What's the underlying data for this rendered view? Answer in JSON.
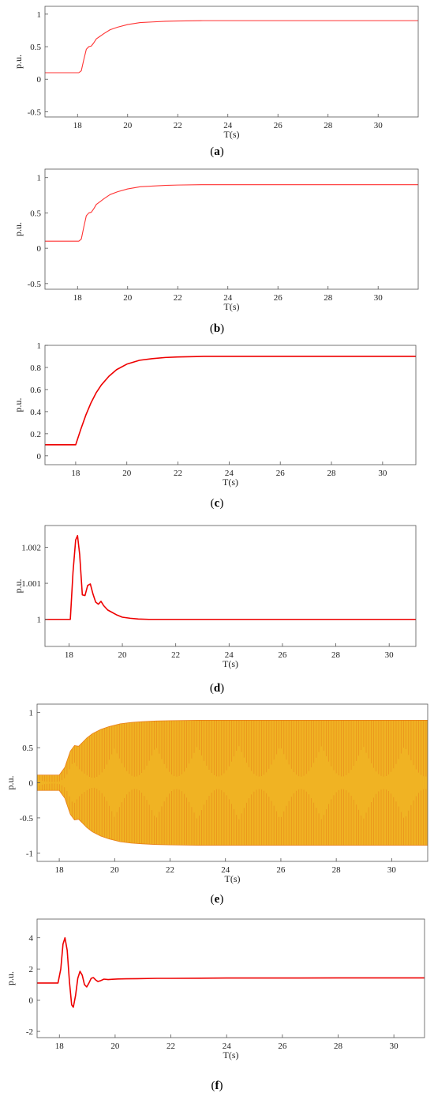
{
  "chart_data": [
    {
      "type": "line",
      "caption": "a",
      "xlabel": "T(s)",
      "ylabel": "p.u.",
      "xlim": [
        16.7,
        31.6
      ],
      "ylim": [
        -0.58,
        1.12
      ],
      "xticks": [
        18,
        20,
        22,
        24,
        26,
        28,
        30
      ],
      "yticks": [
        -0.5,
        0,
        0.5,
        1
      ],
      "ytick_labels": [
        "-0.5",
        "0",
        "0.5",
        "1"
      ],
      "grid": false,
      "series": [
        {
          "color": "#ff3333",
          "x": [
            16.7,
            18.05,
            18.15,
            18.25,
            18.35,
            18.45,
            18.55,
            18.65,
            18.75,
            18.9,
            19.05,
            19.3,
            19.6,
            20.0,
            20.5,
            21.0,
            21.5,
            22.0,
            23.0,
            24.0,
            26.0,
            28.0,
            31.6
          ],
          "y": [
            0.1,
            0.1,
            0.13,
            0.3,
            0.46,
            0.5,
            0.51,
            0.56,
            0.62,
            0.66,
            0.7,
            0.76,
            0.8,
            0.84,
            0.87,
            0.88,
            0.89,
            0.895,
            0.9,
            0.9,
            0.9,
            0.9,
            0.9
          ]
        }
      ]
    },
    {
      "type": "line",
      "caption": "b",
      "xlabel": "T(s)",
      "ylabel": "p.u.",
      "xlim": [
        16.7,
        31.6
      ],
      "ylim": [
        -0.58,
        1.12
      ],
      "xticks": [
        18,
        20,
        22,
        24,
        26,
        28,
        30
      ],
      "yticks": [
        -0.5,
        0,
        0.5,
        1
      ],
      "ytick_labels": [
        "-0.5",
        "0",
        "0.5",
        "1"
      ],
      "grid": false,
      "series": [
        {
          "color": "#ff3333",
          "x": [
            16.7,
            18.05,
            18.15,
            18.25,
            18.35,
            18.45,
            18.55,
            18.65,
            18.75,
            18.9,
            19.05,
            19.3,
            19.6,
            20.0,
            20.5,
            21.0,
            21.5,
            22.0,
            23.0,
            24.0,
            26.0,
            28.0,
            31.6
          ],
          "y": [
            0.1,
            0.1,
            0.13,
            0.3,
            0.46,
            0.5,
            0.51,
            0.56,
            0.62,
            0.66,
            0.7,
            0.76,
            0.8,
            0.84,
            0.87,
            0.88,
            0.89,
            0.895,
            0.9,
            0.9,
            0.9,
            0.9,
            0.9
          ]
        }
      ]
    },
    {
      "type": "line",
      "caption": "c",
      "xlabel": "T(s)",
      "ylabel": "p.u.",
      "xlim": [
        16.8,
        31.3
      ],
      "ylim": [
        -0.08,
        1.0
      ],
      "xticks": [
        18,
        20,
        22,
        24,
        26,
        28,
        30
      ],
      "yticks": [
        0,
        0.2,
        0.4,
        0.6,
        0.8,
        1
      ],
      "ytick_labels": [
        "0",
        "0.2",
        "0.4",
        "0.6",
        "0.8",
        "1"
      ],
      "grid": false,
      "series": [
        {
          "color": "#ee0000",
          "x": [
            16.8,
            18.0,
            18.2,
            18.4,
            18.6,
            18.8,
            19.0,
            19.3,
            19.6,
            20.0,
            20.5,
            21.0,
            21.5,
            22.0,
            23.0,
            24.0,
            26.0,
            28.0,
            31.3
          ],
          "y": [
            0.1,
            0.1,
            0.24,
            0.37,
            0.48,
            0.57,
            0.64,
            0.72,
            0.78,
            0.83,
            0.865,
            0.88,
            0.89,
            0.895,
            0.9,
            0.9,
            0.9,
            0.9,
            0.9
          ]
        }
      ]
    },
    {
      "type": "line",
      "caption": "d",
      "xlabel": "T(s)",
      "ylabel": "p.u.",
      "xlim": [
        17.1,
        31.0
      ],
      "ylim": [
        0.99925,
        1.0026
      ],
      "xticks": [
        18,
        20,
        22,
        24,
        26,
        28,
        30
      ],
      "yticks": [
        1,
        1.001,
        1.002
      ],
      "ytick_labels": [
        "1",
        "1.001",
        "1.002"
      ],
      "grid": false,
      "series": [
        {
          "color": "#ee0000",
          "x": [
            17.1,
            18.05,
            18.15,
            18.25,
            18.32,
            18.4,
            18.5,
            18.6,
            18.7,
            18.8,
            18.9,
            19.0,
            19.1,
            19.2,
            19.3,
            19.45,
            19.6,
            19.8,
            20.0,
            20.3,
            20.6,
            21.0,
            21.5,
            22.0,
            24.0,
            26.0,
            28.0,
            31.0
          ],
          "y": [
            1.0,
            1.0,
            1.0013,
            1.0022,
            1.00232,
            1.0018,
            1.00068,
            1.00066,
            1.00094,
            1.00098,
            1.0007,
            1.00048,
            1.00042,
            1.0005,
            1.00038,
            1.00026,
            1.0002,
            1.00012,
            1.00006,
            1.00003,
            1.00001,
            1.0,
            1.0,
            1.0,
            1.0,
            1.0,
            1.0,
            1.0
          ]
        }
      ]
    },
    {
      "type": "area",
      "caption": "e",
      "xlabel": "T(s)",
      "ylabel": "p.u.",
      "xlim": [
        17.2,
        31.3
      ],
      "ylim": [
        -1.12,
        1.12
      ],
      "xticks": [
        18,
        20,
        22,
        24,
        26,
        28,
        30
      ],
      "yticks": [
        -1,
        -0.5,
        0,
        0.5,
        1
      ],
      "ytick_labels": [
        "-1",
        "-0.5",
        "0",
        "0.5",
        "1"
      ],
      "grid": false,
      "series": [
        {
          "color": "#f0b323",
          "stroke": "#e8801a",
          "x": [
            17.2,
            18.0,
            18.2,
            18.4,
            18.55,
            18.7,
            18.85,
            19.0,
            19.2,
            19.5,
            19.8,
            20.2,
            20.6,
            21.0,
            21.5,
            22.0,
            23.0,
            24.0,
            26.0,
            28.0,
            31.3
          ],
          "y": [
            0.11,
            0.11,
            0.22,
            0.45,
            0.53,
            0.52,
            0.58,
            0.64,
            0.7,
            0.76,
            0.8,
            0.84,
            0.86,
            0.87,
            0.88,
            0.885,
            0.89,
            0.89,
            0.89,
            0.89,
            0.89
          ]
        }
      ]
    },
    {
      "type": "line",
      "caption": "f",
      "xlabel": "T(s)",
      "ylabel": "p.u.",
      "xlim": [
        17.2,
        31.1
      ],
      "ylim": [
        -2.4,
        5.2
      ],
      "xticks": [
        18,
        20,
        22,
        24,
        26,
        28,
        30
      ],
      "yticks": [
        -2,
        0,
        2,
        4
      ],
      "ytick_labels": [
        "-2",
        "0",
        "2",
        "4"
      ],
      "grid": false,
      "series": [
        {
          "color": "#ee0000",
          "x": [
            17.2,
            17.95,
            18.05,
            18.13,
            18.2,
            18.28,
            18.36,
            18.44,
            18.5,
            18.58,
            18.66,
            18.74,
            18.82,
            18.9,
            18.98,
            19.06,
            19.14,
            19.22,
            19.3,
            19.38,
            19.48,
            19.6,
            19.75,
            19.9,
            20.1,
            20.4,
            20.8,
            21.5,
            22.0,
            24.0,
            26.0,
            28.0,
            31.1
          ],
          "y": [
            1.1,
            1.1,
            2.0,
            3.6,
            4.0,
            3.2,
            1.2,
            -0.3,
            -0.45,
            0.3,
            1.4,
            1.85,
            1.6,
            1.0,
            0.85,
            1.1,
            1.4,
            1.45,
            1.3,
            1.2,
            1.25,
            1.35,
            1.32,
            1.34,
            1.36,
            1.37,
            1.38,
            1.4,
            1.4,
            1.42,
            1.42,
            1.43,
            1.43
          ]
        }
      ]
    }
  ]
}
